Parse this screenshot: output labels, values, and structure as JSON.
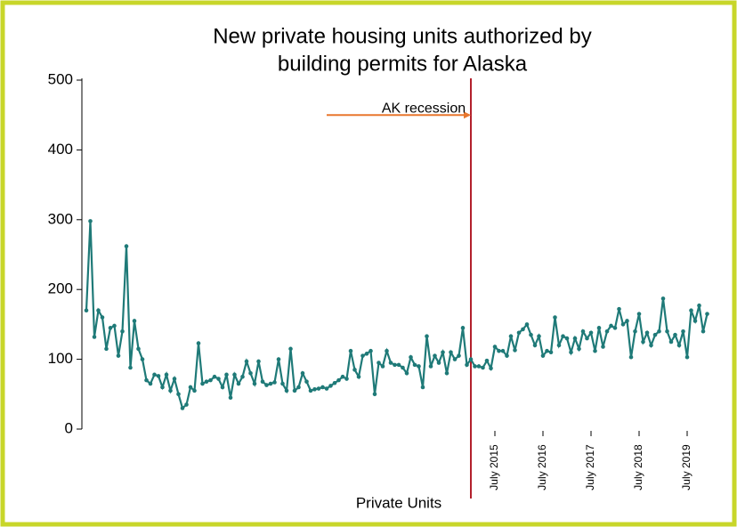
{
  "chart_data": {
    "type": "line",
    "title": [
      "New private housing units authorized by",
      "building permits for Alaska"
    ],
    "xlabel": "Private Units",
    "x": [
      "2007-01",
      "2007-02",
      "2007-03",
      "2007-04",
      "2007-05",
      "2007-06",
      "2007-07",
      "2007-08",
      "2007-09",
      "2007-10",
      "2007-11",
      "2007-12",
      "2008-01",
      "2008-02",
      "2008-03",
      "2008-04",
      "2008-05",
      "2008-06",
      "2008-07",
      "2008-08",
      "2008-09",
      "2008-10",
      "2008-11",
      "2008-12",
      "2009-01",
      "2009-02",
      "2009-03",
      "2009-04",
      "2009-05",
      "2009-06",
      "2009-07",
      "2009-08",
      "2009-09",
      "2009-10",
      "2009-11",
      "2009-12",
      "2010-01",
      "2010-02",
      "2010-03",
      "2010-04",
      "2010-05",
      "2010-06",
      "2010-07",
      "2010-08",
      "2010-09",
      "2010-10",
      "2010-11",
      "2010-12",
      "2011-01",
      "2011-02",
      "2011-03",
      "2011-04",
      "2011-05",
      "2011-06",
      "2011-07",
      "2011-08",
      "2011-09",
      "2011-10",
      "2011-11",
      "2011-12",
      "2012-01",
      "2012-02",
      "2012-03",
      "2012-04",
      "2012-05",
      "2012-06",
      "2012-07",
      "2012-08",
      "2012-09",
      "2012-10",
      "2012-11",
      "2012-12",
      "2013-01",
      "2013-02",
      "2013-03",
      "2013-04",
      "2013-05",
      "2013-06",
      "2013-07",
      "2013-08",
      "2013-09",
      "2013-10",
      "2013-11",
      "2013-12",
      "2014-01",
      "2014-02",
      "2014-03",
      "2014-04",
      "2014-05",
      "2014-06",
      "2014-07",
      "2014-08",
      "2014-09",
      "2014-10",
      "2014-11",
      "2014-12",
      "2015-01",
      "2015-02",
      "2015-03",
      "2015-04",
      "2015-05",
      "2015-06",
      "2015-07",
      "2015-08",
      "2015-09",
      "2015-10",
      "2015-11",
      "2015-12",
      "2016-01",
      "2016-02",
      "2016-03",
      "2016-04",
      "2016-05",
      "2016-06",
      "2016-07",
      "2016-08",
      "2016-09",
      "2016-10",
      "2016-11",
      "2016-12",
      "2017-01",
      "2017-02",
      "2017-03",
      "2017-04",
      "2017-05",
      "2017-06",
      "2017-07",
      "2017-08",
      "2017-09",
      "2017-10",
      "2017-11",
      "2017-12",
      "2018-01",
      "2018-02",
      "2018-03",
      "2018-04",
      "2018-05",
      "2018-06",
      "2018-07",
      "2018-08",
      "2018-09",
      "2018-10",
      "2018-11",
      "2018-12",
      "2019-01",
      "2019-02",
      "2019-03",
      "2019-04",
      "2019-05",
      "2019-06",
      "2019-07",
      "2019-08",
      "2019-09",
      "2019-10",
      "2019-11",
      "2019-12"
    ],
    "series": [
      {
        "name": "Private Units",
        "color": "#1f7a78",
        "values": [
          170,
          298,
          132,
          170,
          160,
          115,
          145,
          148,
          105,
          140,
          262,
          88,
          155,
          115,
          100,
          70,
          65,
          78,
          76,
          60,
          78,
          55,
          72,
          50,
          30,
          35,
          60,
          55,
          123,
          65,
          68,
          70,
          75,
          72,
          60,
          78,
          45,
          78,
          65,
          75,
          97,
          80,
          65,
          97,
          68,
          63,
          65,
          67,
          100,
          65,
          55,
          115,
          55,
          60,
          80,
          68,
          55,
          57,
          58,
          60,
          58,
          62,
          66,
          70,
          75,
          72,
          112,
          85,
          75,
          105,
          108,
          112,
          50,
          95,
          90,
          112,
          95,
          92,
          92,
          88,
          80,
          103,
          92,
          90,
          60,
          133,
          90,
          105,
          95,
          110,
          80,
          110,
          100,
          105,
          145,
          92,
          100,
          90,
          90,
          88,
          98,
          87,
          118,
          112,
          112,
          105,
          133,
          113,
          138,
          143,
          150,
          135,
          120,
          133,
          105,
          112,
          110,
          160,
          120,
          133,
          130,
          110,
          130,
          115,
          140,
          130,
          138,
          112,
          145,
          118,
          140,
          148,
          145,
          172,
          150,
          155,
          103,
          140,
          165,
          125,
          138,
          120,
          135,
          140,
          187,
          140,
          125,
          135,
          120,
          140,
          103,
          170,
          155,
          177,
          140,
          165
        ]
      }
    ],
    "ylim": [
      0,
      500
    ],
    "yticks": [
      0,
      100,
      200,
      300,
      400,
      500
    ],
    "xticks": [
      {
        "value": "2015-07",
        "label": "July 2015"
      },
      {
        "value": "2016-07",
        "label": "July 2016"
      },
      {
        "value": "2017-07",
        "label": "July 2017"
      },
      {
        "value": "2018-07",
        "label": "July 2018"
      },
      {
        "value": "2019-07",
        "label": "July 2019"
      }
    ],
    "annotation": {
      "text": "AK recession",
      "line_x": "2015-01",
      "line_color": "#b3202c",
      "arrow_from": "2012-01",
      "arrow_to": "2015-01",
      "arrow_y": 450,
      "arrow_color": "#e8772e"
    }
  }
}
